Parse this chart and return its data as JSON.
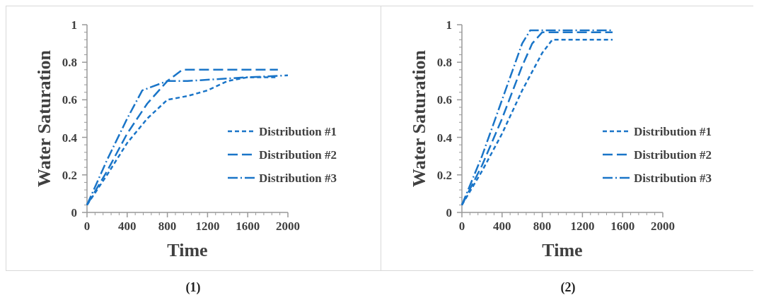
{
  "chart_data": [
    {
      "type": "line",
      "xlabel": "Time",
      "ylabel": "Water Saturation",
      "xlim": [
        0,
        2000
      ],
      "ylim": [
        0,
        1
      ],
      "xticks": [
        0,
        400,
        800,
        1200,
        1600,
        2000
      ],
      "yticks": [
        0,
        0.2,
        0.4,
        0.6,
        0.8,
        1
      ],
      "grid": false,
      "legend": "right",
      "annotations": [
        "(1)"
      ],
      "series": [
        {
          "name": "Distribution #1",
          "color": "#1a75c8",
          "line_style": "dashed",
          "x": [
            0,
            200,
            400,
            600,
            800,
            1000,
            1200,
            1400,
            1600,
            1900
          ],
          "values": [
            0.04,
            0.2,
            0.37,
            0.5,
            0.6,
            0.62,
            0.65,
            0.7,
            0.72,
            0.72
          ]
        },
        {
          "name": "Distribution #2",
          "color": "#1a75c8",
          "line_style": "longdash",
          "x": [
            0,
            200,
            400,
            600,
            800,
            950,
            1900
          ],
          "values": [
            0.04,
            0.22,
            0.42,
            0.58,
            0.7,
            0.76,
            0.76
          ]
        },
        {
          "name": "Distribution #3",
          "color": "#1a75c8",
          "line_style": "dashdot",
          "x": [
            0,
            200,
            400,
            550,
            800,
            1000,
            1600,
            2000
          ],
          "values": [
            0.04,
            0.28,
            0.5,
            0.65,
            0.7,
            0.7,
            0.72,
            0.73
          ]
        }
      ]
    },
    {
      "type": "line",
      "xlabel": "Time",
      "ylabel": "Water Saturation",
      "xlim": [
        0,
        2000
      ],
      "ylim": [
        0,
        1
      ],
      "xticks": [
        0,
        400,
        800,
        1200,
        1600,
        2000
      ],
      "yticks": [
        0,
        0.2,
        0.4,
        0.6,
        0.8,
        1
      ],
      "grid": false,
      "legend": "right",
      "annotations": [
        "(2)"
      ],
      "series": [
        {
          "name": "Distribution #1",
          "color": "#1a75c8",
          "line_style": "dashed",
          "x": [
            0,
            200,
            400,
            600,
            800,
            900,
            1500
          ],
          "values": [
            0.04,
            0.22,
            0.42,
            0.65,
            0.85,
            0.92,
            0.92
          ]
        },
        {
          "name": "Distribution #2",
          "color": "#1a75c8",
          "line_style": "longdash",
          "x": [
            0,
            200,
            400,
            600,
            700,
            800,
            1500
          ],
          "values": [
            0.04,
            0.25,
            0.5,
            0.78,
            0.9,
            0.96,
            0.96
          ]
        },
        {
          "name": "Distribution #3",
          "color": "#1a75c8",
          "line_style": "dashdot",
          "x": [
            0,
            200,
            400,
            600,
            680,
            1500
          ],
          "values": [
            0.04,
            0.3,
            0.6,
            0.9,
            0.97,
            0.97
          ]
        }
      ]
    }
  ]
}
